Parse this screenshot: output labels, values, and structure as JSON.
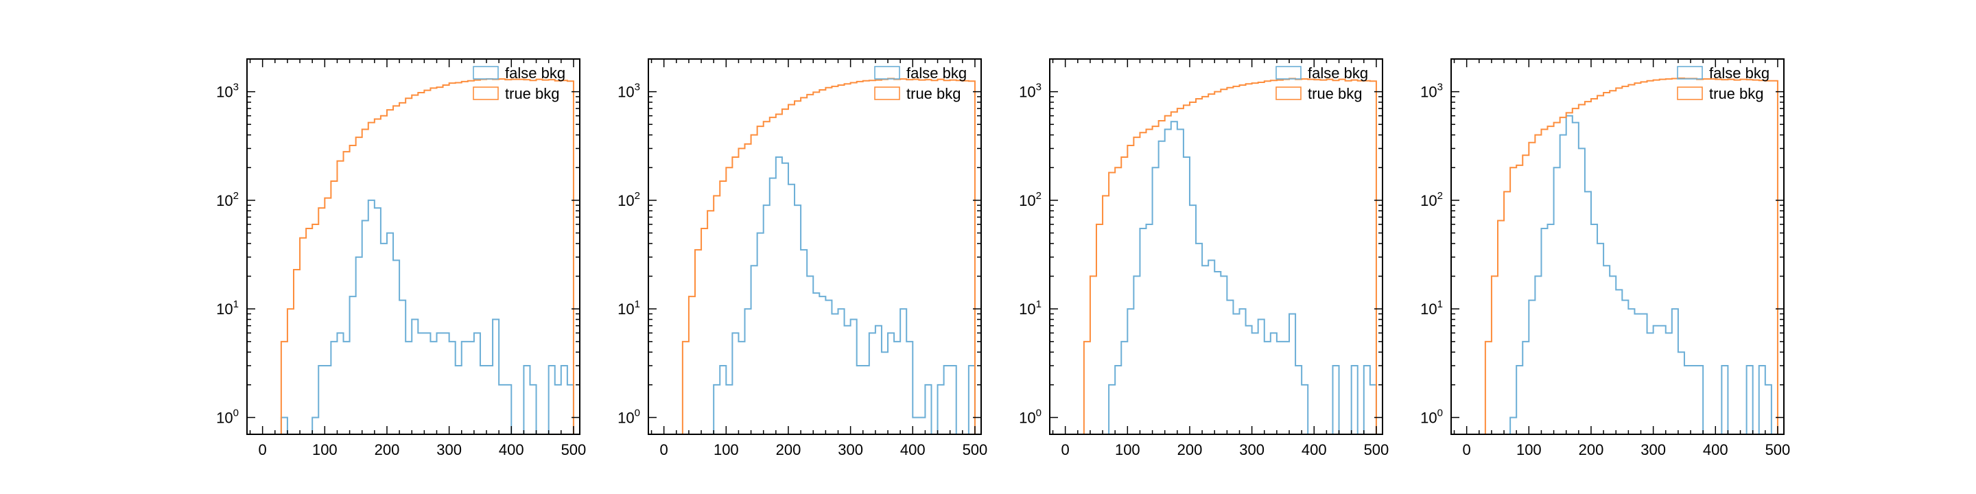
{
  "colors": {
    "false_bkg": "#6baed6",
    "true_bkg": "#fd8d3c",
    "frame": "#000000"
  },
  "chart_data": [
    {
      "type": "histogram-step",
      "x": {
        "min": -25,
        "max": 510,
        "ticks": [
          0,
          100,
          200,
          300,
          400,
          500
        ],
        "bin_edges_start": 0,
        "bin_width": 10
      },
      "y": {
        "scale": "log",
        "min": 0.7,
        "max": 2000,
        "tick_bases": [
          "10",
          "10",
          "10",
          "10"
        ],
        "tick_exponents": [
          "0",
          "1",
          "2",
          "3"
        ]
      },
      "legend": {
        "placement": "top-right"
      },
      "series": [
        {
          "name": "false bkg",
          "color": "#6baed6",
          "values": [
            0,
            0,
            0,
            1,
            0,
            0,
            0,
            0,
            1,
            3,
            3,
            5,
            6,
            5,
            13,
            30,
            65,
            100,
            85,
            40,
            50,
            28,
            12,
            5,
            8,
            6,
            6,
            5,
            6,
            6,
            5,
            3,
            5,
            5,
            6,
            3,
            3,
            8,
            2,
            2,
            0,
            0,
            3,
            2,
            0,
            0,
            3,
            2,
            3,
            2
          ]
        },
        {
          "name": "true bkg",
          "color": "#fd8d3c",
          "values": [
            0,
            0,
            0,
            5,
            10,
            23,
            45,
            55,
            60,
            85,
            105,
            150,
            230,
            280,
            320,
            380,
            450,
            520,
            560,
            600,
            680,
            740,
            790,
            870,
            930,
            980,
            1030,
            1080,
            1100,
            1150,
            1200,
            1210,
            1240,
            1260,
            1280,
            1300,
            1310,
            1300,
            1310,
            1290,
            1300,
            1300,
            1290,
            1270,
            1300,
            1280,
            1290,
            1260,
            1270,
            1250
          ]
        }
      ]
    },
    {
      "type": "histogram-step",
      "x": {
        "min": -25,
        "max": 510,
        "ticks": [
          0,
          100,
          200,
          300,
          400,
          500
        ],
        "bin_edges_start": 0,
        "bin_width": 10
      },
      "y": {
        "scale": "log",
        "min": 0.7,
        "max": 2000,
        "tick_bases": [
          "10",
          "10",
          "10",
          "10"
        ],
        "tick_exponents": [
          "0",
          "1",
          "2",
          "3"
        ]
      },
      "legend": {
        "placement": "top-right"
      },
      "series": [
        {
          "name": "false bkg",
          "color": "#6baed6",
          "values": [
            0,
            0,
            0,
            0,
            0,
            0,
            0,
            0,
            2,
            3,
            2,
            6,
            5,
            10,
            25,
            50,
            90,
            160,
            250,
            220,
            140,
            90,
            35,
            20,
            14,
            13,
            12,
            9,
            10,
            7,
            8,
            3,
            3,
            6,
            7,
            4,
            6,
            5,
            10,
            5,
            1,
            1,
            2,
            0,
            2,
            3,
            3,
            0,
            0,
            3
          ]
        },
        {
          "name": "true bkg",
          "color": "#fd8d3c",
          "values": [
            0,
            0,
            0,
            5,
            13,
            35,
            55,
            80,
            110,
            150,
            200,
            250,
            300,
            330,
            400,
            480,
            530,
            580,
            620,
            690,
            760,
            820,
            880,
            940,
            990,
            1040,
            1090,
            1120,
            1150,
            1180,
            1210,
            1240,
            1260,
            1270,
            1280,
            1300,
            1320,
            1300,
            1310,
            1290,
            1300,
            1280,
            1290,
            1270,
            1300,
            1270,
            1280,
            1270,
            1260,
            1250
          ]
        }
      ]
    },
    {
      "type": "histogram-step",
      "x": {
        "min": -25,
        "max": 510,
        "ticks": [
          0,
          100,
          200,
          300,
          400,
          500
        ],
        "bin_edges_start": 0,
        "bin_width": 10
      },
      "y": {
        "scale": "log",
        "min": 0.7,
        "max": 2000,
        "tick_bases": [
          "10",
          "10",
          "10",
          "10"
        ],
        "tick_exponents": [
          "0",
          "1",
          "2",
          "3"
        ]
      },
      "legend": {
        "placement": "top-right"
      },
      "series": [
        {
          "name": "false bkg",
          "color": "#6baed6",
          "values": [
            0,
            0,
            0,
            0,
            0,
            0,
            0,
            2,
            3,
            5,
            10,
            20,
            55,
            60,
            200,
            350,
            450,
            530,
            450,
            250,
            90,
            40,
            25,
            28,
            22,
            20,
            12,
            9,
            10,
            7,
            6,
            8,
            5,
            6,
            5,
            5,
            9,
            3,
            2,
            0,
            0,
            0,
            0,
            3,
            0,
            0,
            3,
            0,
            3,
            2
          ]
        },
        {
          "name": "true bkg",
          "color": "#fd8d3c",
          "values": [
            0,
            0,
            0,
            5,
            20,
            60,
            110,
            180,
            200,
            250,
            320,
            380,
            420,
            450,
            480,
            540,
            600,
            650,
            700,
            750,
            800,
            860,
            900,
            950,
            1000,
            1050,
            1090,
            1120,
            1150,
            1180,
            1200,
            1220,
            1250,
            1270,
            1280,
            1300,
            1320,
            1300,
            1310,
            1300,
            1290,
            1280,
            1300,
            1270,
            1300,
            1260,
            1280,
            1260,
            1260,
            1250
          ]
        }
      ]
    },
    {
      "type": "histogram-step",
      "x": {
        "min": -25,
        "max": 510,
        "ticks": [
          0,
          100,
          200,
          300,
          400,
          500
        ],
        "bin_edges_start": 0,
        "bin_width": 10
      },
      "y": {
        "scale": "log",
        "min": 0.7,
        "max": 2000,
        "tick_bases": [
          "10",
          "10",
          "10",
          "10"
        ],
        "tick_exponents": [
          "0",
          "1",
          "2",
          "3"
        ]
      },
      "legend": {
        "placement": "top-right"
      },
      "series": [
        {
          "name": "false bkg",
          "color": "#6baed6",
          "values": [
            0,
            0,
            0,
            0,
            0,
            0,
            0,
            1,
            3,
            5,
            12,
            20,
            55,
            60,
            200,
            400,
            600,
            520,
            300,
            120,
            60,
            40,
            25,
            20,
            15,
            12,
            10,
            9,
            9,
            6,
            7,
            7,
            6,
            10,
            4,
            3,
            3,
            3,
            0,
            0,
            0,
            3,
            0,
            0,
            0,
            3,
            0,
            3,
            2,
            0
          ]
        },
        {
          "name": "true bkg",
          "color": "#fd8d3c",
          "values": [
            0,
            0,
            0,
            5,
            20,
            65,
            120,
            200,
            210,
            260,
            340,
            400,
            450,
            480,
            520,
            580,
            640,
            700,
            760,
            810,
            860,
            920,
            980,
            1020,
            1080,
            1120,
            1160,
            1200,
            1230,
            1260,
            1280,
            1300,
            1310,
            1320,
            1330,
            1320,
            1320,
            1300,
            1310,
            1310,
            1300,
            1290,
            1300,
            1280,
            1300,
            1290,
            1280,
            1270,
            1260,
            1260
          ]
        }
      ]
    }
  ]
}
